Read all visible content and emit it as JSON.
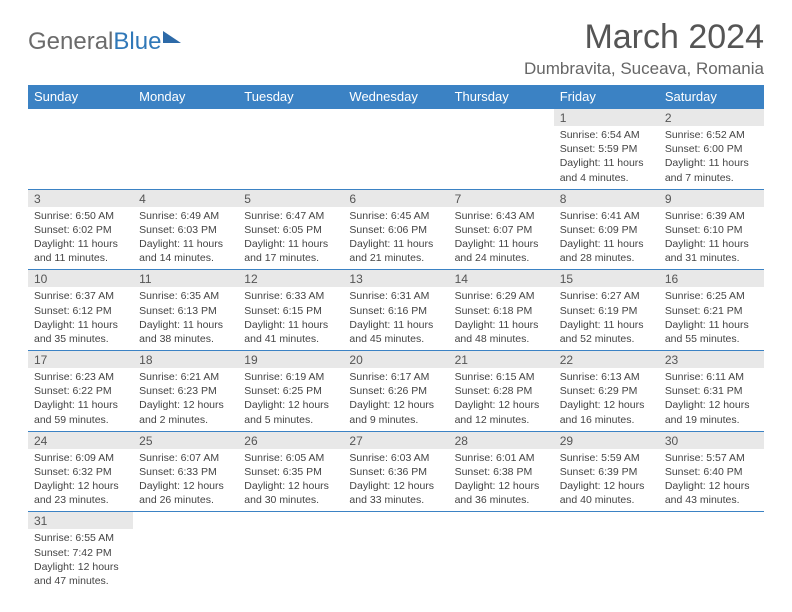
{
  "logo": {
    "part1": "General",
    "part2": "Blue"
  },
  "title": "March 2024",
  "location": "Dumbravita, Suceava, Romania",
  "colors": {
    "header_bg": "#3b82c4",
    "header_fg": "#ffffff",
    "daynum_bg": "#e8e8e8",
    "border": "#3b82c4",
    "text": "#444444",
    "title": "#555555"
  },
  "day_names": [
    "Sunday",
    "Monday",
    "Tuesday",
    "Wednesday",
    "Thursday",
    "Friday",
    "Saturday"
  ],
  "weeks": [
    [
      null,
      null,
      null,
      null,
      null,
      {
        "n": "1",
        "sr": "Sunrise: 6:54 AM",
        "ss": "Sunset: 5:59 PM",
        "d1": "Daylight: 11 hours",
        "d2": "and 4 minutes."
      },
      {
        "n": "2",
        "sr": "Sunrise: 6:52 AM",
        "ss": "Sunset: 6:00 PM",
        "d1": "Daylight: 11 hours",
        "d2": "and 7 minutes."
      }
    ],
    [
      {
        "n": "3",
        "sr": "Sunrise: 6:50 AM",
        "ss": "Sunset: 6:02 PM",
        "d1": "Daylight: 11 hours",
        "d2": "and 11 minutes."
      },
      {
        "n": "4",
        "sr": "Sunrise: 6:49 AM",
        "ss": "Sunset: 6:03 PM",
        "d1": "Daylight: 11 hours",
        "d2": "and 14 minutes."
      },
      {
        "n": "5",
        "sr": "Sunrise: 6:47 AM",
        "ss": "Sunset: 6:05 PM",
        "d1": "Daylight: 11 hours",
        "d2": "and 17 minutes."
      },
      {
        "n": "6",
        "sr": "Sunrise: 6:45 AM",
        "ss": "Sunset: 6:06 PM",
        "d1": "Daylight: 11 hours",
        "d2": "and 21 minutes."
      },
      {
        "n": "7",
        "sr": "Sunrise: 6:43 AM",
        "ss": "Sunset: 6:07 PM",
        "d1": "Daylight: 11 hours",
        "d2": "and 24 minutes."
      },
      {
        "n": "8",
        "sr": "Sunrise: 6:41 AM",
        "ss": "Sunset: 6:09 PM",
        "d1": "Daylight: 11 hours",
        "d2": "and 28 minutes."
      },
      {
        "n": "9",
        "sr": "Sunrise: 6:39 AM",
        "ss": "Sunset: 6:10 PM",
        "d1": "Daylight: 11 hours",
        "d2": "and 31 minutes."
      }
    ],
    [
      {
        "n": "10",
        "sr": "Sunrise: 6:37 AM",
        "ss": "Sunset: 6:12 PM",
        "d1": "Daylight: 11 hours",
        "d2": "and 35 minutes."
      },
      {
        "n": "11",
        "sr": "Sunrise: 6:35 AM",
        "ss": "Sunset: 6:13 PM",
        "d1": "Daylight: 11 hours",
        "d2": "and 38 minutes."
      },
      {
        "n": "12",
        "sr": "Sunrise: 6:33 AM",
        "ss": "Sunset: 6:15 PM",
        "d1": "Daylight: 11 hours",
        "d2": "and 41 minutes."
      },
      {
        "n": "13",
        "sr": "Sunrise: 6:31 AM",
        "ss": "Sunset: 6:16 PM",
        "d1": "Daylight: 11 hours",
        "d2": "and 45 minutes."
      },
      {
        "n": "14",
        "sr": "Sunrise: 6:29 AM",
        "ss": "Sunset: 6:18 PM",
        "d1": "Daylight: 11 hours",
        "d2": "and 48 minutes."
      },
      {
        "n": "15",
        "sr": "Sunrise: 6:27 AM",
        "ss": "Sunset: 6:19 PM",
        "d1": "Daylight: 11 hours",
        "d2": "and 52 minutes."
      },
      {
        "n": "16",
        "sr": "Sunrise: 6:25 AM",
        "ss": "Sunset: 6:21 PM",
        "d1": "Daylight: 11 hours",
        "d2": "and 55 minutes."
      }
    ],
    [
      {
        "n": "17",
        "sr": "Sunrise: 6:23 AM",
        "ss": "Sunset: 6:22 PM",
        "d1": "Daylight: 11 hours",
        "d2": "and 59 minutes."
      },
      {
        "n": "18",
        "sr": "Sunrise: 6:21 AM",
        "ss": "Sunset: 6:23 PM",
        "d1": "Daylight: 12 hours",
        "d2": "and 2 minutes."
      },
      {
        "n": "19",
        "sr": "Sunrise: 6:19 AM",
        "ss": "Sunset: 6:25 PM",
        "d1": "Daylight: 12 hours",
        "d2": "and 5 minutes."
      },
      {
        "n": "20",
        "sr": "Sunrise: 6:17 AM",
        "ss": "Sunset: 6:26 PM",
        "d1": "Daylight: 12 hours",
        "d2": "and 9 minutes."
      },
      {
        "n": "21",
        "sr": "Sunrise: 6:15 AM",
        "ss": "Sunset: 6:28 PM",
        "d1": "Daylight: 12 hours",
        "d2": "and 12 minutes."
      },
      {
        "n": "22",
        "sr": "Sunrise: 6:13 AM",
        "ss": "Sunset: 6:29 PM",
        "d1": "Daylight: 12 hours",
        "d2": "and 16 minutes."
      },
      {
        "n": "23",
        "sr": "Sunrise: 6:11 AM",
        "ss": "Sunset: 6:31 PM",
        "d1": "Daylight: 12 hours",
        "d2": "and 19 minutes."
      }
    ],
    [
      {
        "n": "24",
        "sr": "Sunrise: 6:09 AM",
        "ss": "Sunset: 6:32 PM",
        "d1": "Daylight: 12 hours",
        "d2": "and 23 minutes."
      },
      {
        "n": "25",
        "sr": "Sunrise: 6:07 AM",
        "ss": "Sunset: 6:33 PM",
        "d1": "Daylight: 12 hours",
        "d2": "and 26 minutes."
      },
      {
        "n": "26",
        "sr": "Sunrise: 6:05 AM",
        "ss": "Sunset: 6:35 PM",
        "d1": "Daylight: 12 hours",
        "d2": "and 30 minutes."
      },
      {
        "n": "27",
        "sr": "Sunrise: 6:03 AM",
        "ss": "Sunset: 6:36 PM",
        "d1": "Daylight: 12 hours",
        "d2": "and 33 minutes."
      },
      {
        "n": "28",
        "sr": "Sunrise: 6:01 AM",
        "ss": "Sunset: 6:38 PM",
        "d1": "Daylight: 12 hours",
        "d2": "and 36 minutes."
      },
      {
        "n": "29",
        "sr": "Sunrise: 5:59 AM",
        "ss": "Sunset: 6:39 PM",
        "d1": "Daylight: 12 hours",
        "d2": "and 40 minutes."
      },
      {
        "n": "30",
        "sr": "Sunrise: 5:57 AM",
        "ss": "Sunset: 6:40 PM",
        "d1": "Daylight: 12 hours",
        "d2": "and 43 minutes."
      }
    ],
    [
      {
        "n": "31",
        "sr": "Sunrise: 6:55 AM",
        "ss": "Sunset: 7:42 PM",
        "d1": "Daylight: 12 hours",
        "d2": "and 47 minutes."
      },
      null,
      null,
      null,
      null,
      null,
      null
    ]
  ]
}
